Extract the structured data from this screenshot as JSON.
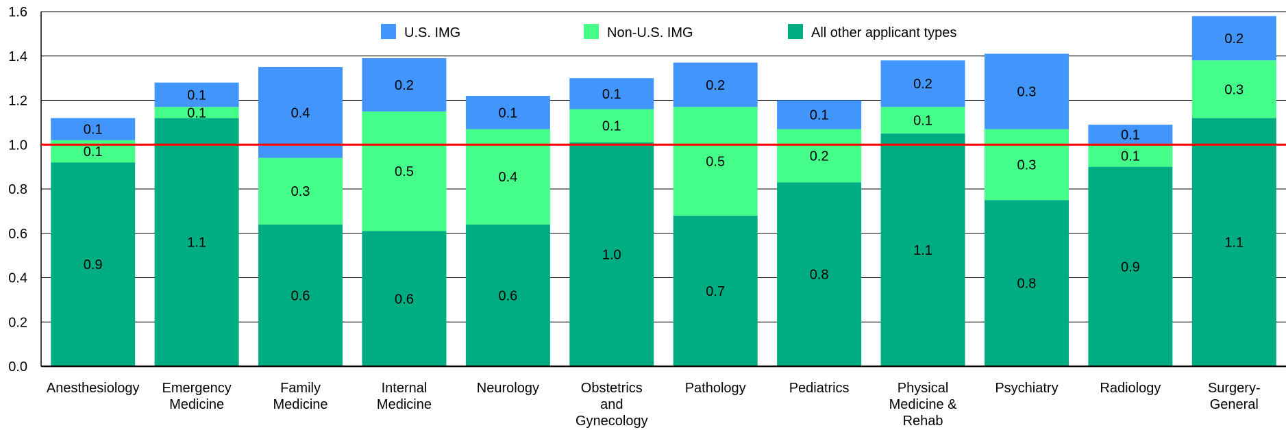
{
  "chart_data": {
    "type": "bar",
    "stacked": true,
    "title": "",
    "xlabel": "",
    "ylabel": "",
    "ylim": [
      0,
      1.6
    ],
    "yticks": [
      "0.0",
      "0.2",
      "0.4",
      "0.6",
      "0.8",
      "1.0",
      "1.2",
      "1.4",
      "1.6"
    ],
    "grid": true,
    "legend_position": "top-center",
    "reference_line": {
      "y": 1.0,
      "color": "#ff0000"
    },
    "categories": [
      [
        "Anesthesiology"
      ],
      [
        "Emergency",
        "Medicine"
      ],
      [
        "Family",
        "Medicine"
      ],
      [
        "Internal",
        "Medicine"
      ],
      [
        "Neurology"
      ],
      [
        "Obstetrics",
        "and",
        "Gynecology"
      ],
      [
        "Pathology"
      ],
      [
        "Pediatrics"
      ],
      [
        "Physical",
        "Medicine &",
        "Rehab"
      ],
      [
        "Psychiatry"
      ],
      [
        "Radiology"
      ],
      [
        "Surgery-",
        "General"
      ]
    ],
    "series": [
      {
        "name": "All other applicant types",
        "color": "#00ad82",
        "values": [
          0.92,
          1.12,
          0.64,
          0.61,
          0.64,
          1.01,
          0.68,
          0.83,
          1.05,
          0.75,
          0.9,
          1.12
        ],
        "labels": [
          "0.9",
          "1.1",
          "0.6",
          "0.6",
          "0.6",
          "1.0",
          "0.7",
          "0.8",
          "1.1",
          "0.8",
          "0.9",
          "1.1"
        ]
      },
      {
        "name": "Non-U.S. IMG",
        "color": "#45fd89",
        "values": [
          0.1,
          0.05,
          0.3,
          0.54,
          0.43,
          0.15,
          0.49,
          0.24,
          0.12,
          0.32,
          0.1,
          0.26
        ],
        "labels": [
          "0.1",
          "0.1",
          "0.3",
          "0.5",
          "0.4",
          "0.1",
          "0.5",
          "0.2",
          "0.1",
          "0.3",
          "0.1",
          "0.3"
        ]
      },
      {
        "name": "U.S. IMG",
        "color": "#4296fb",
        "values": [
          0.1,
          0.11,
          0.41,
          0.24,
          0.15,
          0.14,
          0.2,
          0.13,
          0.21,
          0.34,
          0.09,
          0.2
        ],
        "labels": [
          "0.1",
          "0.1",
          "0.4",
          "0.2",
          "0.1",
          "0.1",
          "0.2",
          "0.1",
          "0.2",
          "0.3",
          "0.1",
          "0.2"
        ]
      }
    ],
    "legend_order": [
      "U.S. IMG",
      "Non-U.S. IMG",
      "All other applicant types"
    ]
  }
}
